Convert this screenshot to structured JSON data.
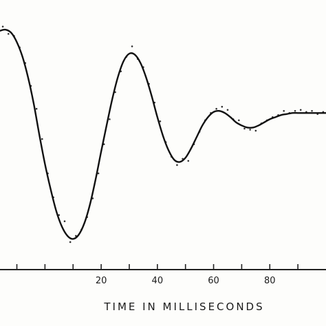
{
  "chart_data": {
    "type": "line",
    "title": "",
    "xlabel": "TIME IN MILLISECONDS",
    "ylabel": "",
    "xlim": [
      -16,
      100
    ],
    "ylim": [
      -1.1,
      1.1
    ],
    "x_ticks": [
      -10,
      0,
      10,
      20,
      30,
      40,
      50,
      60,
      70,
      80,
      90
    ],
    "x_tick_labels": [
      {
        "x": 20,
        "label": "20"
      },
      {
        "x": 40,
        "label": "40"
      },
      {
        "x": 60,
        "label": "60"
      },
      {
        "x": 80,
        "label": "80"
      }
    ],
    "grid": false,
    "series": [
      {
        "kind": "fitted-curve",
        "color": "#111111",
        "x": [
          -16,
          -14,
          -12,
          -10,
          -8,
          -6,
          -4,
          -2,
          0,
          2,
          4,
          6,
          8,
          10,
          12,
          14,
          16,
          18,
          20,
          22,
          24,
          26,
          28,
          30,
          32,
          34,
          36,
          38,
          40,
          42,
          44,
          46,
          48,
          50,
          52,
          54,
          56,
          58,
          60,
          62,
          64,
          66,
          68,
          70,
          72,
          74,
          76,
          78,
          80,
          82,
          84,
          86,
          88,
          90,
          92,
          94,
          96,
          98,
          100
        ],
        "y": [
          0.95,
          0.96,
          0.93,
          0.84,
          0.7,
          0.5,
          0.25,
          -0.05,
          -0.33,
          -0.57,
          -0.78,
          -0.93,
          -1.02,
          -1.05,
          -1.01,
          -0.9,
          -0.72,
          -0.48,
          -0.21,
          0.05,
          0.3,
          0.51,
          0.66,
          0.73,
          0.72,
          0.64,
          0.5,
          0.32,
          0.12,
          -0.06,
          -0.2,
          -0.29,
          -0.31,
          -0.27,
          -0.18,
          -0.07,
          0.04,
          0.12,
          0.17,
          0.18,
          0.16,
          0.12,
          0.07,
          0.04,
          0.02,
          0.02,
          0.04,
          0.07,
          0.1,
          0.12,
          0.14,
          0.15,
          0.16,
          0.16,
          0.16,
          0.16,
          0.16,
          0.16,
          0.16
        ]
      },
      {
        "kind": "measured-points",
        "color": "#333333",
        "x": [
          -15,
          -13,
          -11,
          -9,
          -7,
          -5,
          -3,
          -1,
          1,
          3,
          5,
          7,
          9,
          11,
          13,
          15,
          17,
          19,
          21,
          23,
          25,
          27,
          29,
          31,
          33,
          35,
          37,
          39,
          41,
          43,
          45,
          47,
          49,
          51,
          53,
          55,
          57,
          59,
          61,
          63,
          65,
          67,
          69,
          71,
          73,
          75,
          77,
          79,
          81,
          83,
          85,
          87,
          89,
          91,
          93,
          95,
          97,
          99
        ],
        "y": [
          0.99,
          0.92,
          0.9,
          0.79,
          0.64,
          0.42,
          0.2,
          -0.09,
          -0.42,
          -0.65,
          -0.82,
          -0.88,
          -1.08,
          -1.02,
          -0.96,
          -0.84,
          -0.66,
          -0.42,
          -0.14,
          0.1,
          0.36,
          0.56,
          0.7,
          0.8,
          0.68,
          0.6,
          0.44,
          0.26,
          0.08,
          -0.12,
          -0.26,
          -0.34,
          -0.28,
          -0.3,
          -0.14,
          -0.02,
          0.09,
          0.16,
          0.2,
          0.22,
          0.19,
          0.1,
          0.09,
          0.01,
          0.0,
          -0.01,
          0.06,
          0.09,
          0.12,
          0.14,
          0.18,
          0.16,
          0.18,
          0.19,
          0.17,
          0.18,
          0.15,
          0.17
        ]
      }
    ]
  }
}
